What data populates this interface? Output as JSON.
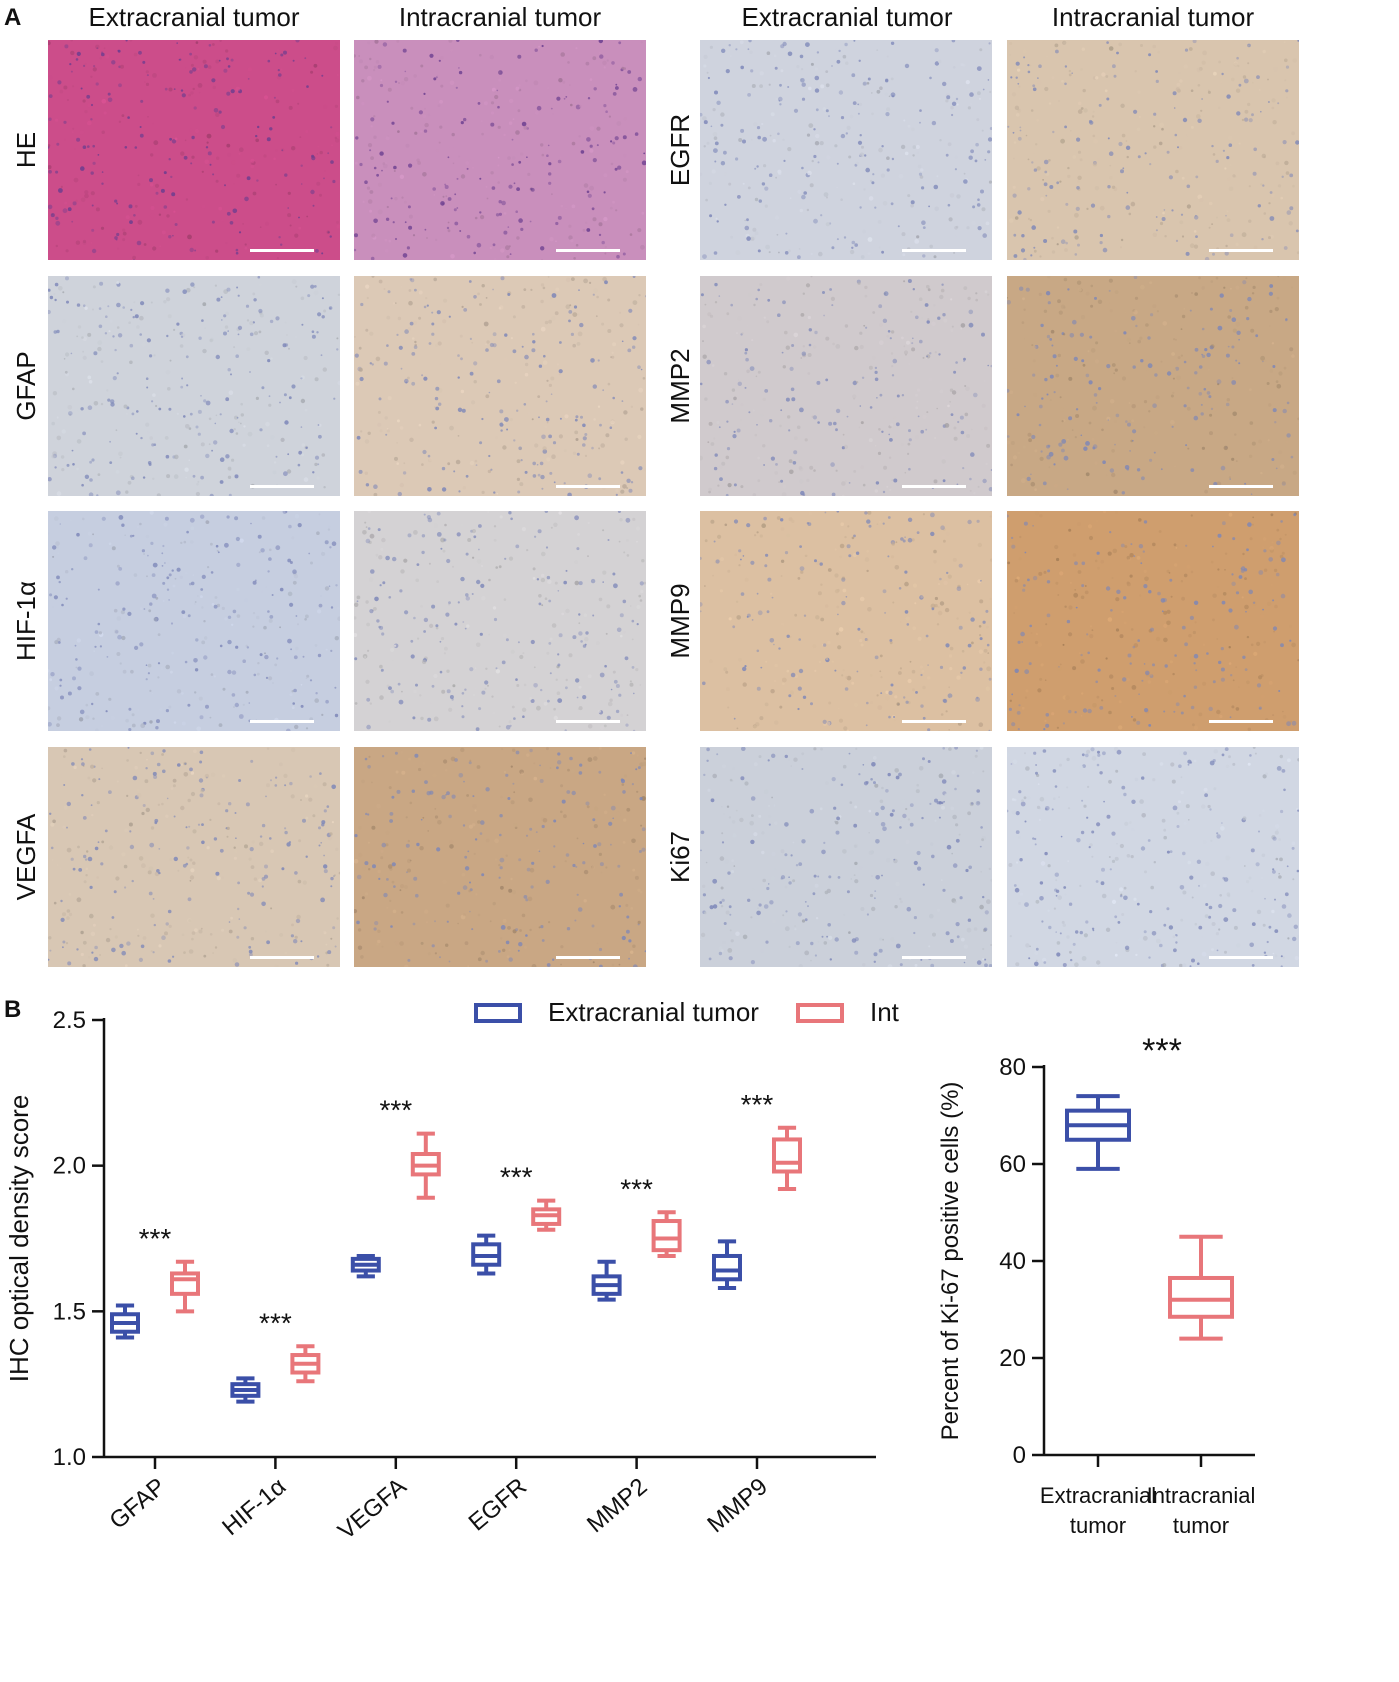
{
  "panel_a": {
    "letter": "A",
    "column_headers": [
      "Extracranial tumor",
      "Intracranial tumor",
      "Extracranial tumor",
      "Intracranial tumor"
    ],
    "stains": [
      {
        "label": "HE",
        "style": "he"
      },
      {
        "label": "GFAP",
        "style": "ihc"
      },
      {
        "label": "HIF-1α",
        "style": "ihc"
      },
      {
        "label": "VEGFA",
        "style": "ihc"
      },
      {
        "label": "EGFR",
        "style": "ihc"
      },
      {
        "label": "MMP2",
        "style": "ihc"
      },
      {
        "label": "MMP9",
        "style": "ihc"
      },
      {
        "label": "Ki67",
        "style": "ihc"
      }
    ],
    "tile_colors": {
      "he-extra": "#cc4d8a",
      "he-intra": "#c98fbc",
      "gfap-extra": "#cfd3db",
      "gfap-intra": "#dcc9b6",
      "hif-extra": "#c6cee0",
      "hif-intra": "#d4d2d4",
      "vegfa-extra": "#d8c7b4",
      "vegfa-intra": "#c9a784",
      "egfr-extra": "#cfd3de",
      "egfr-intra": "#d9c5ae",
      "mmp2-extra": "#d0cacd",
      "mmp2-intra": "#c8a885",
      "mmp9-extra": "#dcc0a2",
      "mmp9-intra": "#cf9e6e",
      "ki67-extra": "#cbd0da",
      "ki67-intra": "#d1d7e3"
    }
  },
  "panel_b": {
    "letter": "B"
  },
  "chart_data": [
    {
      "type": "box",
      "ylabel": "IHC optical density score",
      "ylim": [
        1.0,
        2.5
      ],
      "yticks": [
        "1.0",
        "1.5",
        "2.0",
        "2.5"
      ],
      "categories": [
        "GFAP",
        "HIF-1α",
        "VEGFA",
        "EGFR",
        "MMP2",
        "MMP9"
      ],
      "legend": {
        "placement": "top",
        "entries": [
          "Extracranial tumor",
          "Intracranial tumor"
        ]
      },
      "significance": [
        "***",
        "***",
        "***",
        "***",
        "***",
        "***"
      ],
      "series": [
        {
          "name": "Extracranial tumor",
          "color": "#3b4fa8",
          "boxes": [
            {
              "min": 1.41,
              "q1": 1.43,
              "median": 1.46,
              "q3": 1.49,
              "max": 1.52
            },
            {
              "min": 1.19,
              "q1": 1.21,
              "median": 1.23,
              "q3": 1.25,
              "max": 1.27
            },
            {
              "min": 1.62,
              "q1": 1.64,
              "median": 1.66,
              "q3": 1.68,
              "max": 1.69
            },
            {
              "min": 1.63,
              "q1": 1.66,
              "median": 1.69,
              "q3": 1.73,
              "max": 1.76
            },
            {
              "min": 1.54,
              "q1": 1.56,
              "median": 1.59,
              "q3": 1.62,
              "max": 1.67
            },
            {
              "min": 1.58,
              "q1": 1.61,
              "median": 1.64,
              "q3": 1.69,
              "max": 1.74
            }
          ]
        },
        {
          "name": "Intracranial tumor",
          "color": "#e8767a",
          "boxes": [
            {
              "min": 1.5,
              "q1": 1.56,
              "median": 1.61,
              "q3": 1.63,
              "max": 1.67
            },
            {
              "min": 1.26,
              "q1": 1.29,
              "median": 1.32,
              "q3": 1.35,
              "max": 1.38
            },
            {
              "min": 1.89,
              "q1": 1.97,
              "median": 2.0,
              "q3": 2.04,
              "max": 2.11
            },
            {
              "min": 1.78,
              "q1": 1.8,
              "median": 1.83,
              "q3": 1.85,
              "max": 1.88
            },
            {
              "min": 1.69,
              "q1": 1.71,
              "median": 1.75,
              "q3": 1.81,
              "max": 1.84
            },
            {
              "min": 1.92,
              "q1": 1.98,
              "median": 2.01,
              "q3": 2.09,
              "max": 2.13
            }
          ]
        }
      ]
    },
    {
      "type": "box",
      "ylabel": "Percent of Ki-67 positive cells (%)",
      "ylim": [
        0,
        80
      ],
      "yticks": [
        "0",
        "20",
        "40",
        "60",
        "80"
      ],
      "categories": [
        "Extracranial\ntumor",
        "Intracranial\ntumor"
      ],
      "significance": "***",
      "boxes": [
        {
          "color": "#3b4fa8",
          "min": 59,
          "q1": 65,
          "median": 68,
          "q3": 71,
          "max": 74
        },
        {
          "color": "#e8767a",
          "min": 24,
          "q1": 28.5,
          "median": 32,
          "q3": 36.5,
          "max": 45
        }
      ]
    }
  ]
}
